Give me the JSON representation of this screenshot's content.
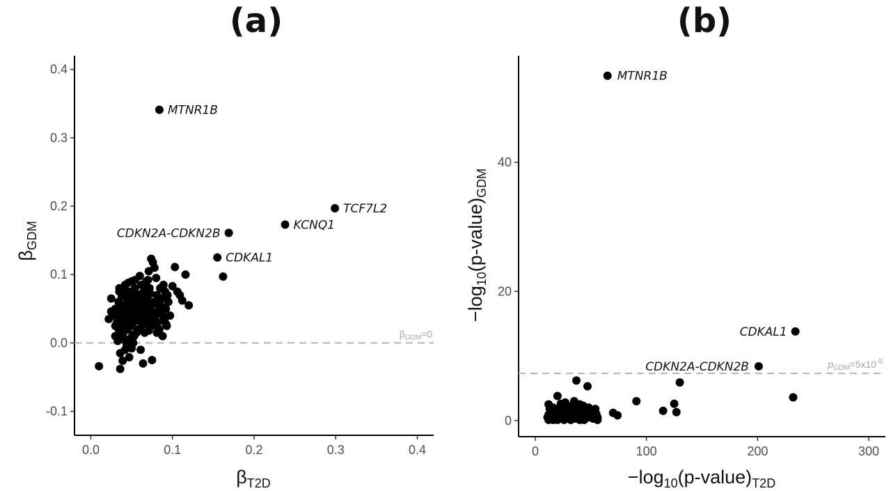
{
  "chart_data": [
    {
      "type": "scatter",
      "panel": "(a)",
      "xlabel_main": "β",
      "xlabel_sub": "T2D",
      "ylabel_main": "β",
      "ylabel_sub": "GDM",
      "xlim": [
        -0.02,
        0.42
      ],
      "ylim": [
        -0.135,
        0.42
      ],
      "xticks": [
        "0.0",
        "0.1",
        "0.2",
        "0.3",
        "0.4"
      ],
      "xtick_values": [
        0.0,
        0.1,
        0.2,
        0.3,
        0.4
      ],
      "yticks": [
        "-0.1",
        "0.0",
        "0.1",
        "0.2",
        "0.3",
        "0.4"
      ],
      "ytick_values": [
        -0.1,
        0.0,
        0.1,
        0.2,
        0.3,
        0.4
      ],
      "reference_line": {
        "value": 0,
        "orientation": "horizontal",
        "style": "dashed",
        "label_main": "β",
        "label_sub": "GDM",
        "label_suffix": "=0"
      },
      "labeled_points": [
        {
          "label": "MTNR1B",
          "x": 0.084,
          "y": 0.341
        },
        {
          "label": "TCF7L2",
          "x": 0.299,
          "y": 0.197
        },
        {
          "label": "KCNQ1",
          "x": 0.238,
          "y": 0.173
        },
        {
          "label": "CDKN2A-CDKN2B",
          "x": 0.169,
          "y": 0.161
        },
        {
          "label": "CDKAL1",
          "x": 0.155,
          "y": 0.125
        }
      ],
      "points": [
        [
          0.162,
          0.097
        ],
        [
          0.01,
          -0.034
        ],
        [
          0.036,
          -0.038
        ],
        [
          0.047,
          -0.021
        ],
        [
          0.039,
          -0.026
        ],
        [
          0.064,
          -0.03
        ],
        [
          0.075,
          -0.025
        ],
        [
          0.05,
          -0.008
        ],
        [
          0.061,
          -0.01
        ],
        [
          0.042,
          -0.01
        ],
        [
          0.036,
          -0.015
        ],
        [
          0.025,
          0.046
        ],
        [
          0.022,
          0.035
        ],
        [
          0.025,
          0.065
        ],
        [
          0.03,
          0.025
        ],
        [
          0.03,
          0.01
        ],
        [
          0.033,
          0.003
        ],
        [
          0.034,
          0.06
        ],
        [
          0.035,
          0.08
        ],
        [
          0.037,
          0.055
        ],
        [
          0.038,
          0.045
        ],
        [
          0.04,
          0.03
        ],
        [
          0.04,
          0.015
        ],
        [
          0.041,
          0.07
        ],
        [
          0.042,
          0.085
        ],
        [
          0.043,
          0.05
        ],
        [
          0.044,
          0.04
        ],
        [
          0.045,
          0.02
        ],
        [
          0.045,
          0.0
        ],
        [
          0.046,
          0.06
        ],
        [
          0.047,
          0.075
        ],
        [
          0.048,
          0.035
        ],
        [
          0.049,
          0.055
        ],
        [
          0.05,
          0.09
        ],
        [
          0.05,
          0.025
        ],
        [
          0.051,
          0.045
        ],
        [
          0.052,
          0.065
        ],
        [
          0.053,
          0.01
        ],
        [
          0.054,
          0.08
        ],
        [
          0.055,
          0.038
        ],
        [
          0.056,
          0.05
        ],
        [
          0.057,
          0.07
        ],
        [
          0.058,
          0.02
        ],
        [
          0.059,
          0.06
        ],
        [
          0.06,
          0.098
        ],
        [
          0.061,
          0.04
        ],
        [
          0.062,
          0.085
        ],
        [
          0.063,
          0.03
        ],
        [
          0.064,
          0.055
        ],
        [
          0.065,
          0.075
        ],
        [
          0.066,
          0.015
        ],
        [
          0.067,
          0.045
        ],
        [
          0.068,
          0.09
        ],
        [
          0.069,
          0.065
        ],
        [
          0.07,
          0.035
        ],
        [
          0.071,
          0.105
        ],
        [
          0.072,
          0.08
        ],
        [
          0.073,
          0.05
        ],
        [
          0.074,
          0.123
        ],
        [
          0.075,
          0.025
        ],
        [
          0.076,
          0.118
        ],
        [
          0.077,
          0.06
        ],
        [
          0.078,
          0.11
        ],
        [
          0.079,
          0.04
        ],
        [
          0.08,
          0.095
        ],
        [
          0.081,
          0.07
        ],
        [
          0.082,
          0.03
        ],
        [
          0.083,
          0.055
        ],
        [
          0.084,
          0.02
        ],
        [
          0.085,
          0.08
        ],
        [
          0.086,
          0.045
        ],
        [
          0.087,
          0.065
        ],
        [
          0.088,
          0.01
        ],
        [
          0.089,
          0.085
        ],
        [
          0.09,
          0.035
        ],
        [
          0.091,
          0.075
        ],
        [
          0.092,
          0.05
        ],
        [
          0.093,
          0.025
        ],
        [
          0.095,
          0.06
        ],
        [
          0.097,
          0.04
        ],
        [
          0.1,
          0.083
        ],
        [
          0.103,
          0.111
        ],
        [
          0.106,
          0.075
        ],
        [
          0.109,
          0.07
        ],
        [
          0.112,
          0.062
        ],
        [
          0.116,
          0.1
        ],
        [
          0.12,
          0.055
        ],
        [
          0.028,
          0.04
        ],
        [
          0.03,
          0.05
        ],
        [
          0.032,
          0.03
        ],
        [
          0.034,
          0.02
        ],
        [
          0.036,
          0.045
        ],
        [
          0.038,
          0.01
        ],
        [
          0.04,
          0.055
        ],
        [
          0.042,
          0.025
        ],
        [
          0.044,
          0.065
        ],
        [
          0.046,
          0.005
        ],
        [
          0.048,
          0.045
        ],
        [
          0.05,
          0.06
        ],
        [
          0.052,
          0.03
        ],
        [
          0.054,
          0.05
        ],
        [
          0.056,
          0.015
        ],
        [
          0.058,
          0.07
        ],
        [
          0.06,
          0.035
        ],
        [
          0.035,
          0.035
        ],
        [
          0.037,
          0.025
        ],
        [
          0.039,
          0.05
        ],
        [
          0.041,
          0.04
        ],
        [
          0.043,
          0.02
        ],
        [
          0.045,
          0.055
        ],
        [
          0.047,
          0.03
        ],
        [
          0.049,
          0.068
        ],
        [
          0.051,
          0.012
        ],
        [
          0.053,
          0.042
        ],
        [
          0.055,
          0.058
        ],
        [
          0.057,
          0.033
        ],
        [
          0.059,
          0.048
        ],
        [
          0.061,
          0.022
        ],
        [
          0.063,
          0.068
        ],
        [
          0.065,
          0.038
        ],
        [
          0.067,
          0.028
        ],
        [
          0.069,
          0.052
        ],
        [
          0.071,
          0.018
        ],
        [
          0.073,
          0.072
        ],
        [
          0.075,
          0.044
        ],
        [
          0.077,
          0.034
        ],
        [
          0.079,
          0.058
        ],
        [
          0.081,
          0.015
        ],
        [
          0.083,
          0.048
        ],
        [
          0.085,
          0.062
        ],
        [
          0.088,
          0.04
        ],
        [
          0.09,
          0.052
        ],
        [
          0.092,
          0.028
        ],
        [
          0.094,
          0.07
        ],
        [
          0.04,
          0.005
        ],
        [
          0.044,
          -0.003
        ],
        [
          0.048,
          0.005
        ],
        [
          0.052,
          0.0
        ],
        [
          0.035,
          0.075
        ],
        [
          0.038,
          0.068
        ],
        [
          0.042,
          0.078
        ],
        [
          0.046,
          0.088
        ],
        [
          0.05,
          0.072
        ],
        [
          0.054,
          0.092
        ],
        [
          0.058,
          0.062
        ],
        [
          0.062,
          0.072
        ],
        [
          0.066,
          0.082
        ],
        [
          0.07,
          0.092
        ],
        [
          0.045,
          0.048
        ],
        [
          0.047,
          0.052
        ],
        [
          0.049,
          0.046
        ],
        [
          0.051,
          0.054
        ],
        [
          0.053,
          0.048
        ],
        [
          0.055,
          0.044
        ],
        [
          0.057,
          0.056
        ],
        [
          0.059,
          0.042
        ],
        [
          0.061,
          0.058
        ],
        [
          0.063,
          0.046
        ],
        [
          0.065,
          0.054
        ],
        [
          0.067,
          0.04
        ],
        [
          0.069,
          0.06
        ],
        [
          0.071,
          0.044
        ],
        [
          0.073,
          0.056
        ]
      ]
    },
    {
      "type": "scatter",
      "panel": "(b)",
      "xlabel_main": "−log",
      "xlabel_sub1": "10",
      "xlabel_rest": "(p-value)",
      "xlabel_sub2": "T2D",
      "ylabel_main": "−log",
      "ylabel_sub1": "10",
      "ylabel_rest": "(p-value)",
      "ylabel_sub2": "GDM",
      "xlim": [
        -15,
        315
      ],
      "ylim": [
        -2.5,
        56.5
      ],
      "xticks": [
        "0",
        "100",
        "200",
        "300"
      ],
      "xtick_values": [
        0,
        100,
        200,
        300
      ],
      "yticks": [
        "0",
        "20",
        "40"
      ],
      "ytick_values": [
        0,
        20,
        40
      ],
      "reference_line": {
        "value": 7.3,
        "orientation": "horizontal",
        "style": "dashed",
        "label_main": "p",
        "label_sub": "GDM",
        "label_mid": "=5x10",
        "label_sup": "-8"
      },
      "labeled_points": [
        {
          "label": "MTNR1B",
          "x": 65,
          "y": 53.4
        },
        {
          "label": "CDKAL1",
          "x": 234,
          "y": 13.8
        },
        {
          "label": "CDKN2A-CDKN2B",
          "x": 201,
          "y": 8.4
        }
      ],
      "points": [
        [
          232,
          3.6
        ],
        [
          130,
          5.9
        ],
        [
          125,
          2.6
        ],
        [
          127,
          1.3
        ],
        [
          115,
          1.5
        ],
        [
          91,
          3.0
        ],
        [
          74,
          0.8
        ],
        [
          70,
          1.2
        ],
        [
          56,
          0.5
        ],
        [
          54,
          1.8
        ],
        [
          47,
          5.3
        ],
        [
          37,
          6.2
        ],
        [
          38,
          0.4
        ],
        [
          40,
          2.5
        ],
        [
          35,
          3.0
        ],
        [
          30,
          1.8
        ],
        [
          20,
          3.8
        ],
        [
          12,
          2.5
        ],
        [
          14,
          1.0
        ],
        [
          16,
          0.3
        ],
        [
          18,
          0.9
        ],
        [
          20,
          0.2
        ],
        [
          22,
          1.5
        ],
        [
          24,
          0.6
        ],
        [
          26,
          1.1
        ],
        [
          28,
          0.4
        ],
        [
          30,
          0.8
        ],
        [
          32,
          1.3
        ],
        [
          34,
          0.3
        ],
        [
          36,
          1.0
        ],
        [
          38,
          0.5
        ],
        [
          40,
          1.4
        ],
        [
          42,
          0.7
        ],
        [
          44,
          0.2
        ],
        [
          46,
          1.1
        ],
        [
          48,
          0.6
        ],
        [
          50,
          0.9
        ],
        [
          52,
          0.3
        ],
        [
          13,
          1.8
        ],
        [
          15,
          1.3
        ],
        [
          17,
          0.6
        ],
        [
          19,
          1.6
        ],
        [
          21,
          0.5
        ],
        [
          23,
          1.2
        ],
        [
          25,
          2.0
        ],
        [
          27,
          0.8
        ],
        [
          29,
          1.5
        ],
        [
          31,
          0.3
        ],
        [
          33,
          2.2
        ],
        [
          35,
          0.9
        ],
        [
          37,
          1.7
        ],
        [
          39,
          0.4
        ],
        [
          41,
          1.0
        ],
        [
          43,
          2.3
        ],
        [
          45,
          0.7
        ],
        [
          11,
          0.5
        ],
        [
          12,
          0.9
        ],
        [
          13,
          0.2
        ],
        [
          14,
          1.5
        ],
        [
          16,
          2.0
        ],
        [
          18,
          0.4
        ],
        [
          20,
          1.1
        ],
        [
          22,
          0.3
        ],
        [
          24,
          1.8
        ],
        [
          26,
          0.7
        ],
        [
          28,
          2.4
        ],
        [
          30,
          1.0
        ],
        [
          32,
          0.6
        ],
        [
          34,
          1.9
        ],
        [
          36,
          0.3
        ],
        [
          15,
          0.5
        ],
        [
          17,
          1.2
        ],
        [
          19,
          0.8
        ],
        [
          21,
          1.9
        ],
        [
          23,
          0.5
        ],
        [
          25,
          0.3
        ],
        [
          27,
          1.5
        ],
        [
          29,
          0.6
        ],
        [
          31,
          1.8
        ],
        [
          33,
          0.9
        ],
        [
          44,
          1.3
        ],
        [
          48,
          2.0
        ],
        [
          52,
          1.4
        ],
        [
          55,
          1.0
        ],
        [
          50,
          0.5
        ],
        [
          16,
          0.1
        ],
        [
          20,
          0.1
        ],
        [
          26,
          0.1
        ],
        [
          32,
          0.1
        ],
        [
          40,
          0.1
        ],
        [
          44,
          0.1
        ],
        [
          12,
          0.1
        ],
        [
          56,
          0.1
        ],
        [
          23,
          2.6
        ],
        [
          27,
          2.8
        ],
        [
          33,
          1.4
        ],
        [
          39,
          2.1
        ],
        [
          42,
          1.5
        ],
        [
          46,
          0.4
        ]
      ]
    }
  ]
}
